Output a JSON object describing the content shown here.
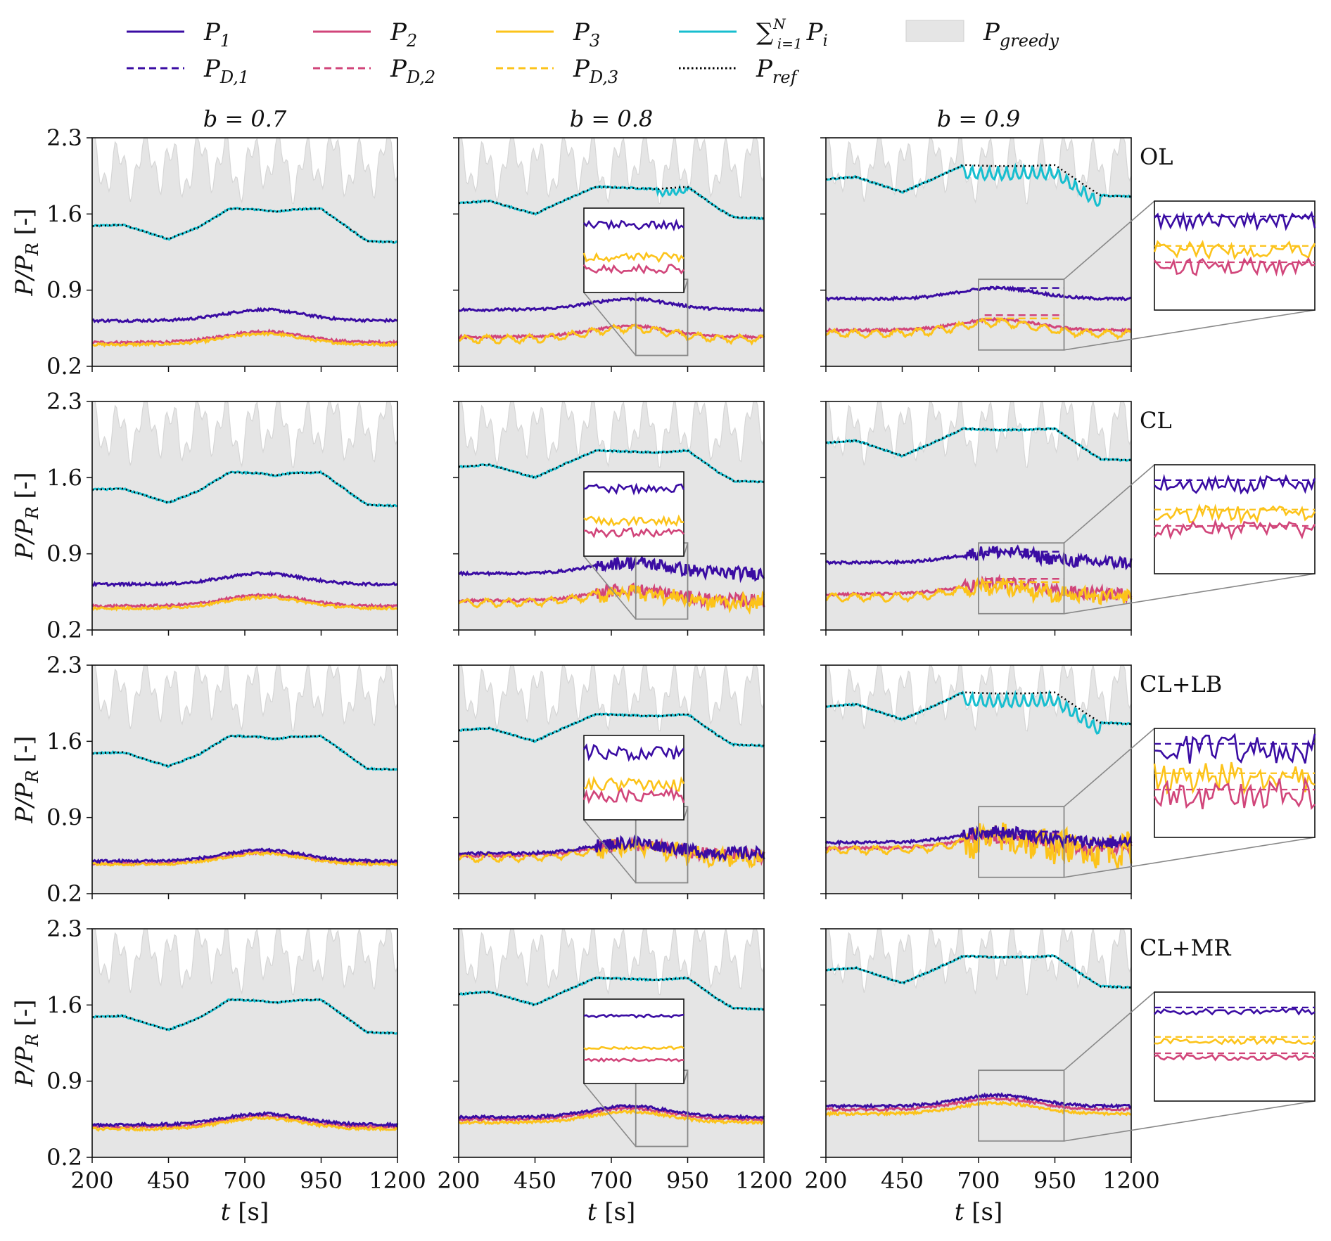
{
  "figure": {
    "legend": [
      {
        "label": "P",
        "sub": "1",
        "style": "solid",
        "color": "#3a0ca3"
      },
      {
        "label": "P",
        "sub": "D,1",
        "style": "dashed",
        "color": "#3a0ca3"
      },
      {
        "label": "P",
        "sub": "2",
        "style": "solid",
        "color": "#d1457a"
      },
      {
        "label": "P",
        "sub": "D,2",
        "style": "dashed",
        "color": "#d1457a"
      },
      {
        "label": "P",
        "sub": "3",
        "style": "solid",
        "color": "#fcc31a"
      },
      {
        "label": "P",
        "sub": "D,3",
        "style": "dashed",
        "color": "#fcc31a"
      },
      {
        "label": "∑ P",
        "sub": "i=1",
        "sup": "N",
        "suffix": "i",
        "style": "solid",
        "color": "#17becf"
      },
      {
        "label": "P",
        "sub": "ref",
        "style": "dotted",
        "color": "#000000"
      },
      {
        "label": "P",
        "sub": "greedy",
        "style": "fill",
        "color": "#e5e5e5"
      }
    ],
    "column_titles": [
      "b = 0.7",
      "b = 0.8",
      "b = 0.9"
    ],
    "row_labels": [
      "OL",
      "CL",
      "CL+LB",
      "CL+MR"
    ],
    "ylabel": "P/P",
    "ylabel_sub": "R",
    "ylabel_unit": " [-]",
    "xlabel": "t",
    "xlabel_unit": " [s]",
    "colors": {
      "P1": "#3a0ca3",
      "P2": "#d1457a",
      "P3": "#fcc31a",
      "sum": "#17becf",
      "ref": "#000000",
      "greedy_fill": "#e5e5e5",
      "greedy_line": "#d6d6d6",
      "inset_frame": "#888888"
    }
  },
  "chart_data": {
    "type": "line",
    "xlim": [
      200,
      1200
    ],
    "ylim": [
      0.2,
      2.3
    ],
    "xticks": [
      200,
      450,
      700,
      950,
      1200
    ],
    "yticks": [
      0.2,
      0.9,
      1.6,
      2.3
    ],
    "grid": false,
    "legend_position": "top",
    "panels_info": "4 rows (OL, CL, CL+LB, CL+MR) x 3 columns (b = 0.7, 0.8, 0.9); insets zoom 780-950 s (b=0.8) and 700-980 s (b=0.9)",
    "reference_sum": {
      "b=0.7": {
        "x": [
          200,
          300,
          450,
          550,
          650,
          750,
          800,
          850,
          950,
          1050,
          1100,
          1200
        ],
        "y": [
          1.49,
          1.5,
          1.37,
          1.48,
          1.65,
          1.64,
          1.62,
          1.64,
          1.65,
          1.45,
          1.35,
          1.34
        ]
      },
      "b=0.8": {
        "x": [
          200,
          300,
          450,
          550,
          650,
          750,
          850,
          950,
          1050,
          1100,
          1200
        ],
        "y": [
          1.7,
          1.72,
          1.6,
          1.73,
          1.85,
          1.84,
          1.83,
          1.85,
          1.65,
          1.57,
          1.56
        ]
      },
      "b=0.9": {
        "x": [
          200,
          300,
          450,
          550,
          650,
          750,
          850,
          950,
          1050,
          1100,
          1200
        ],
        "y": [
          1.92,
          1.94,
          1.8,
          1.92,
          2.05,
          2.04,
          2.04,
          2.05,
          1.86,
          1.77,
          1.76
        ]
      }
    },
    "series_levels": {
      "OL": {
        "b=0.7": [
          0.62,
          0.42,
          0.4
        ],
        "b=0.8": [
          0.72,
          0.47,
          0.45
        ],
        "b=0.9": [
          0.82,
          0.53,
          0.5
        ]
      },
      "CL": {
        "b=0.7": [
          0.62,
          0.42,
          0.4
        ],
        "b=0.8": [
          0.72,
          0.47,
          0.45
        ],
        "b=0.9": [
          0.82,
          0.53,
          0.5
        ]
      },
      "CL+LB": {
        "b=0.7": [
          0.5,
          0.48,
          0.47
        ],
        "b=0.8": [
          0.57,
          0.55,
          0.53
        ],
        "b=0.9": [
          0.67,
          0.62,
          0.6
        ]
      },
      "CL+MR": {
        "b=0.7": [
          0.5,
          0.48,
          0.46
        ],
        "b=0.8": [
          0.57,
          0.55,
          0.52
        ],
        "b=0.9": [
          0.67,
          0.64,
          0.6
        ]
      }
    },
    "series_names": [
      "P1",
      "P2",
      "P3",
      "sum",
      "Pref",
      "Pgreedy"
    ]
  }
}
